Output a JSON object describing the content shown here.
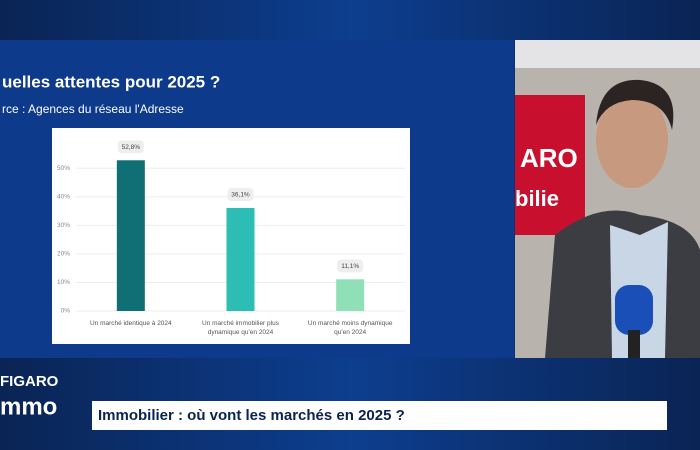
{
  "chart_data": {
    "type": "bar",
    "title": "uelles attentes pour 2025 ?",
    "subtitle": "rce : Agences du réseau l'Adresse",
    "categories": [
      "Un marché identique à 2024",
      "Un marché immobilier plus dynamique qu'en 2024",
      "Un marché moins dynamique qu'en 2024"
    ],
    "values": [
      52.8,
      36.1,
      11.1
    ],
    "value_labels": [
      "52,8%",
      "36,1%",
      "11,1%"
    ],
    "colors": [
      "#0f6f74",
      "#2cbdb5",
      "#8fe0b6"
    ],
    "ylim": [
      0,
      55
    ],
    "yticks": [
      {
        "value": 0,
        "label": "0%"
      },
      {
        "value": 10,
        "label": "10%"
      },
      {
        "value": 20,
        "label": "20%"
      },
      {
        "value": 30,
        "label": "30%"
      },
      {
        "value": 40,
        "label": "40%"
      },
      {
        "value": 50,
        "label": "50%"
      }
    ],
    "grid": true
  },
  "overlay": {
    "logo_top": "FIGARO",
    "logo_bottom": "mmo",
    "banner": "Immobilier : où vont les marchés en 2025 ?"
  }
}
